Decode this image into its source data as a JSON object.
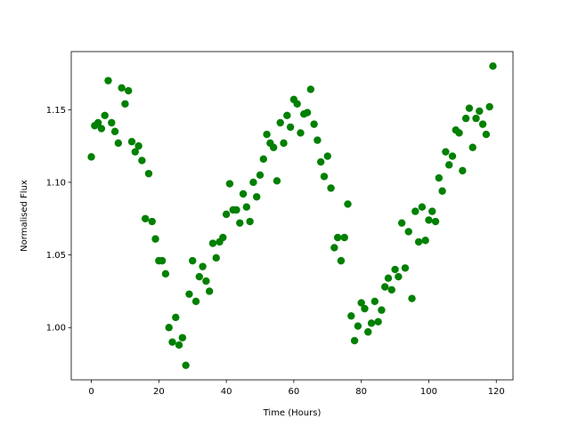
{
  "chart_data": {
    "type": "scatter",
    "xlabel": "Time (Hours)",
    "ylabel": "Normalised Flux",
    "color": "#008000",
    "grid": false,
    "x": [
      0,
      1,
      2,
      3,
      4,
      5,
      6,
      7,
      8,
      9,
      10,
      11,
      12,
      13,
      14,
      15,
      16,
      17,
      18,
      19,
      20,
      21,
      22,
      23,
      24,
      25,
      26,
      27,
      28,
      29,
      30,
      31,
      32,
      33,
      34,
      35,
      36,
      37,
      38,
      39,
      40,
      41,
      42,
      43,
      44,
      45,
      46,
      47,
      48,
      49,
      50,
      51,
      52,
      53,
      54,
      55,
      56,
      57,
      58,
      59,
      60,
      61,
      62,
      63,
      64,
      65,
      66,
      67,
      68,
      69,
      70,
      71,
      72,
      73,
      74,
      75,
      76,
      77,
      78,
      79,
      80,
      81,
      82,
      83,
      84,
      85,
      86,
      87,
      88,
      89,
      90,
      91,
      92,
      93,
      94,
      95,
      96,
      97,
      98,
      99,
      100,
      101,
      102,
      103,
      104,
      105,
      106,
      107,
      108,
      109,
      110,
      111,
      112,
      113,
      114,
      115,
      116,
      117,
      118,
      119
    ],
    "values": [
      1.1175,
      1.139,
      1.141,
      1.137,
      1.146,
      1.17,
      1.141,
      1.135,
      1.127,
      1.165,
      1.154,
      1.163,
      1.128,
      1.121,
      1.125,
      1.115,
      1.075,
      1.106,
      1.073,
      1.061,
      1.046,
      1.046,
      1.037,
      1.0,
      0.99,
      1.007,
      0.988,
      0.993,
      0.974,
      1.023,
      1.046,
      1.018,
      1.035,
      1.042,
      1.032,
      1.025,
      1.058,
      1.048,
      1.059,
      1.062,
      1.078,
      1.099,
      1.081,
      1.081,
      1.072,
      1.092,
      1.083,
      1.073,
      1.1,
      1.09,
      1.105,
      1.116,
      1.133,
      1.127,
      1.124,
      1.101,
      1.141,
      1.127,
      1.146,
      1.138,
      1.157,
      1.154,
      1.134,
      1.147,
      1.148,
      1.164,
      1.14,
      1.129,
      1.114,
      1.104,
      1.118,
      1.096,
      1.055,
      1.062,
      1.046,
      1.062,
      1.085,
      1.008,
      0.991,
      1.001,
      1.017,
      1.013,
      0.997,
      1.003,
      1.018,
      1.004,
      1.012,
      1.028,
      1.034,
      1.026,
      1.04,
      1.035,
      1.072,
      1.041,
      1.066,
      1.02,
      1.08,
      1.059,
      1.083,
      1.06,
      1.074,
      1.08,
      1.073,
      1.103,
      1.094,
      1.121,
      1.112,
      1.118,
      1.136,
      1.134,
      1.108,
      1.144,
      1.151,
      1.124,
      1.144,
      1.149,
      1.14,
      1.133,
      1.152,
      1.18
    ],
    "xlim": [
      -5.95,
      124.95
    ],
    "xticks": [
      0,
      20,
      40,
      60,
      80,
      100,
      120
    ],
    "ylim": [
      0.964,
      1.19
    ],
    "yticks": [
      {
        "value": 1.0,
        "label": "1.00"
      },
      1.05,
      {
        "value": 1.1,
        "label": "1.10"
      },
      1.15
    ]
  }
}
